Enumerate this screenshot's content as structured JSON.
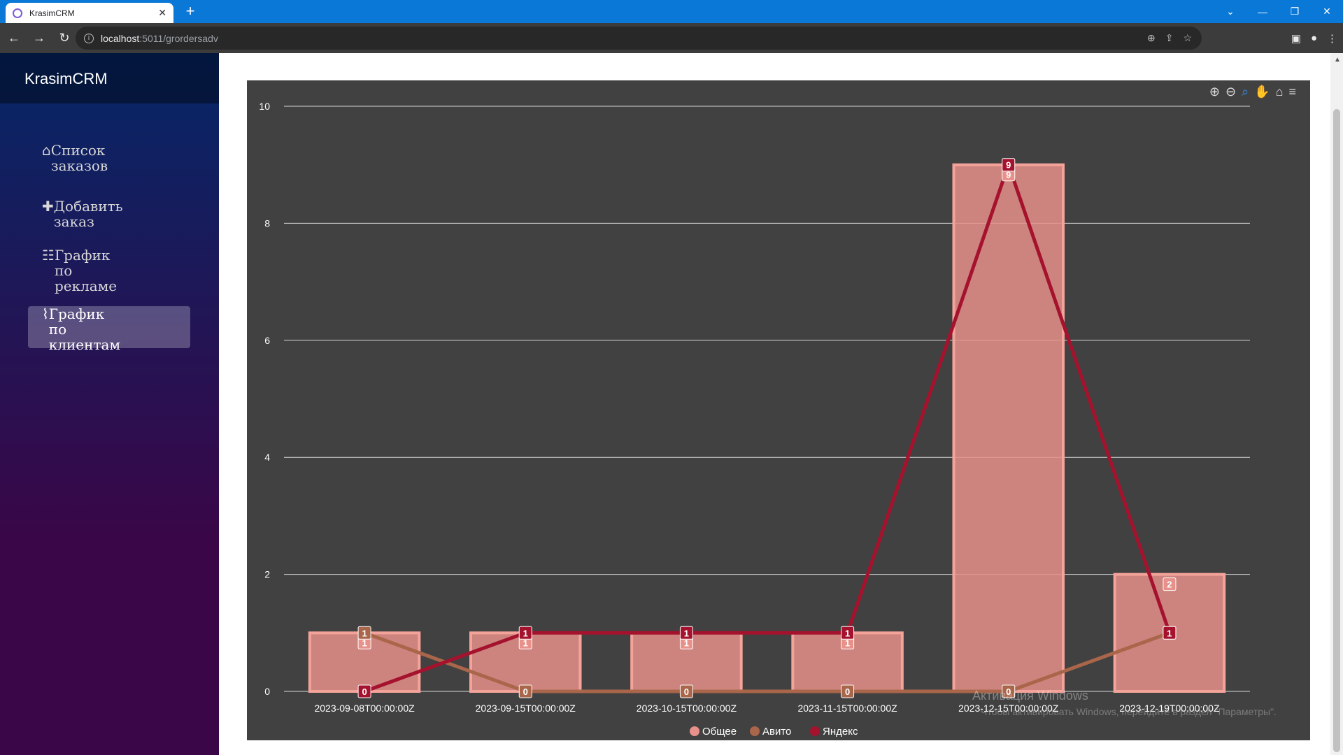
{
  "browser": {
    "tab_title": "KrasimCRM",
    "url_host": "localhost",
    "url_path": ":5011/grordersadv"
  },
  "app": {
    "brand": "KrasimCRM"
  },
  "sidebar": {
    "items": [
      {
        "label": "Список заказов",
        "icon": "home-icon"
      },
      {
        "label": "Добавить заказ",
        "icon": "plus-icon"
      },
      {
        "label": "График по рекламе",
        "icon": "list-icon"
      },
      {
        "label": "График по клиентам",
        "icon": "chart-line-icon",
        "active": true
      }
    ]
  },
  "chart_data": {
    "type": "bar",
    "categories": [
      "2023-09-08T00:00:00Z",
      "2023-09-15T00:00:00Z",
      "2023-10-15T00:00:00Z",
      "2023-11-15T00:00:00Z",
      "2023-12-15T00:00:00Z",
      "2023-12-19T00:00:00Z"
    ],
    "series": [
      {
        "name": "Общее",
        "type": "bar",
        "color": "#e8918a",
        "values": [
          1,
          1,
          1,
          1,
          9,
          2
        ]
      },
      {
        "name": "Авито",
        "type": "line",
        "color": "#a9664a",
        "values": [
          1,
          0,
          0,
          0,
          0,
          1
        ]
      },
      {
        "name": "Яндекс",
        "type": "line",
        "color": "#a5122d",
        "values": [
          0,
          1,
          1,
          1,
          9,
          1
        ]
      }
    ],
    "ylim": [
      0,
      10
    ],
    "yticks": [
      0,
      2,
      4,
      6,
      8,
      10
    ],
    "grid": true,
    "legend": "bottom-center",
    "data_labels": true
  },
  "watermark": {
    "line1": "Активация Windows",
    "line2": "Чтобы активировать Windows, перейдите в раздел \"Параметры\"."
  }
}
